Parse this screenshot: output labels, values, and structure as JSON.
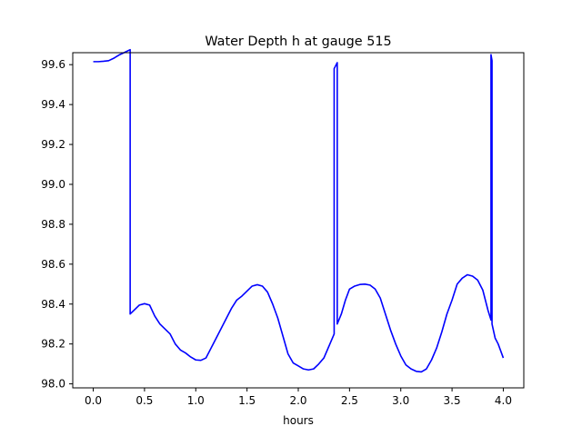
{
  "chart_data": {
    "type": "line",
    "title": "Water Depth h at gauge 515",
    "xlabel": "hours",
    "ylabel": "",
    "xlim": [
      -0.2,
      4.2
    ],
    "ylim": [
      97.98,
      99.66
    ],
    "xticks": [
      0.0,
      0.5,
      1.0,
      1.5,
      2.0,
      2.5,
      3.0,
      3.5,
      4.0
    ],
    "xtick_labels": [
      "0.0",
      "0.5",
      "1.0",
      "1.5",
      "2.0",
      "2.5",
      "3.0",
      "3.5",
      "4.0"
    ],
    "yticks": [
      98.0,
      98.2,
      98.4,
      98.6,
      98.8,
      99.0,
      99.2,
      99.4,
      99.6
    ],
    "ytick_labels": [
      "98.0",
      "98.2",
      "98.4",
      "98.6",
      "98.8",
      "99.0",
      "99.2",
      "99.4",
      "99.6"
    ],
    "grid": false,
    "legend": "none",
    "series": [
      {
        "color": "#0000ff",
        "points": [
          [
            0.0,
            99.615
          ],
          [
            0.05,
            99.615
          ],
          [
            0.1,
            99.617
          ],
          [
            0.15,
            99.62
          ],
          [
            0.2,
            99.632
          ],
          [
            0.25,
            99.648
          ],
          [
            0.3,
            99.66
          ],
          [
            0.36,
            99.675
          ],
          [
            0.36,
            98.35
          ],
          [
            0.4,
            98.37
          ],
          [
            0.45,
            98.395
          ],
          [
            0.5,
            98.402
          ],
          [
            0.55,
            98.395
          ],
          [
            0.6,
            98.34
          ],
          [
            0.65,
            98.3
          ],
          [
            0.7,
            98.275
          ],
          [
            0.75,
            98.25
          ],
          [
            0.8,
            98.2
          ],
          [
            0.85,
            98.17
          ],
          [
            0.9,
            98.155
          ],
          [
            0.95,
            98.135
          ],
          [
            1.0,
            98.12
          ],
          [
            1.05,
            98.118
          ],
          [
            1.1,
            98.13
          ],
          [
            1.15,
            98.18
          ],
          [
            1.2,
            98.23
          ],
          [
            1.25,
            98.28
          ],
          [
            1.3,
            98.33
          ],
          [
            1.35,
            98.38
          ],
          [
            1.4,
            98.42
          ],
          [
            1.45,
            98.44
          ],
          [
            1.5,
            98.465
          ],
          [
            1.55,
            98.49
          ],
          [
            1.6,
            98.497
          ],
          [
            1.65,
            98.49
          ],
          [
            1.7,
            98.46
          ],
          [
            1.75,
            98.4
          ],
          [
            1.8,
            98.33
          ],
          [
            1.85,
            98.24
          ],
          [
            1.9,
            98.15
          ],
          [
            1.95,
            98.105
          ],
          [
            2.0,
            98.09
          ],
          [
            2.05,
            98.075
          ],
          [
            2.1,
            98.07
          ],
          [
            2.15,
            98.075
          ],
          [
            2.2,
            98.1
          ],
          [
            2.25,
            98.13
          ],
          [
            2.3,
            98.19
          ],
          [
            2.35,
            98.25
          ],
          [
            2.35,
            99.58
          ],
          [
            2.38,
            99.61
          ],
          [
            2.38,
            98.3
          ],
          [
            2.42,
            98.35
          ],
          [
            2.46,
            98.42
          ],
          [
            2.5,
            98.475
          ],
          [
            2.55,
            98.49
          ],
          [
            2.6,
            98.498
          ],
          [
            2.65,
            98.5
          ],
          [
            2.7,
            98.495
          ],
          [
            2.75,
            98.475
          ],
          [
            2.8,
            98.43
          ],
          [
            2.85,
            98.35
          ],
          [
            2.9,
            98.27
          ],
          [
            2.95,
            98.2
          ],
          [
            3.0,
            98.14
          ],
          [
            3.05,
            98.095
          ],
          [
            3.1,
            98.075
          ],
          [
            3.15,
            98.063
          ],
          [
            3.2,
            98.06
          ],
          [
            3.25,
            98.075
          ],
          [
            3.3,
            98.12
          ],
          [
            3.35,
            98.18
          ],
          [
            3.4,
            98.26
          ],
          [
            3.45,
            98.35
          ],
          [
            3.5,
            98.42
          ],
          [
            3.55,
            98.5
          ],
          [
            3.6,
            98.53
          ],
          [
            3.65,
            98.547
          ],
          [
            3.7,
            98.54
          ],
          [
            3.75,
            98.52
          ],
          [
            3.8,
            98.47
          ],
          [
            3.85,
            98.37
          ],
          [
            3.88,
            98.32
          ],
          [
            3.88,
            99.65
          ],
          [
            3.89,
            99.62
          ],
          [
            3.89,
            98.3
          ],
          [
            3.92,
            98.23
          ],
          [
            3.95,
            98.2
          ],
          [
            4.0,
            98.13
          ]
        ]
      }
    ]
  }
}
